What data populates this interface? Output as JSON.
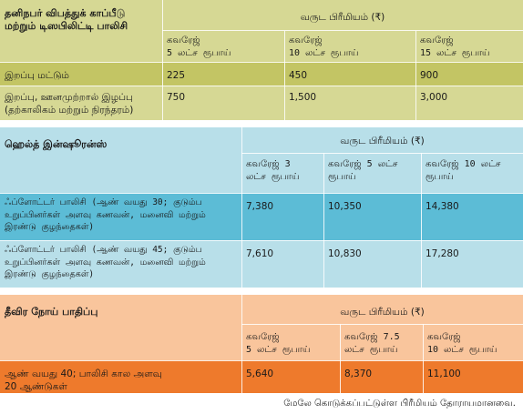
{
  "accident": {
    "title_line1": "தனிநபர் விபத்துக் காப்பீடு",
    "title_line2": "மற்றும் டிஸபிலிட்டி பாலிசி",
    "premium_header": "வருட பிரீமியம் (₹)",
    "coverages": [
      {
        "line1": "கவரேஜ்",
        "line2": "5 லட்ச ரூபாய்"
      },
      {
        "line1": "கவரேஜ்",
        "line2": "10 லட்ச ரூபாய்"
      },
      {
        "line1": "கவரேஜ்",
        "line2": "15 லட்ச ரூபாய்"
      }
    ],
    "rows": [
      {
        "label_line1": "இறப்பு மட்டும்",
        "label_line2": "",
        "values": [
          "225",
          "450",
          "900"
        ]
      },
      {
        "label_line1": "இறப்பு, ஊனமுற்றால் இழப்பு",
        "label_line2": "(தற்காலிகம் மற்றும் நிரந்தரம்)",
        "values": [
          "750",
          "1,500",
          "3,000"
        ]
      }
    ]
  },
  "health": {
    "title": "ஹெல்த் இன்ஷூரன்ஸ்",
    "premium_header": "வருட பிரீமியம் (₹)",
    "coverages": [
      {
        "line1": "கவரேஜ் 3",
        "line2": "லட்ச ரூபாய்"
      },
      {
        "line1": "கவரேஜ் 5 லட்ச",
        "line2": "ரூபாய்"
      },
      {
        "line1": "கவரேஜ் 10 லட்ச",
        "line2": "ரூபாய்"
      }
    ],
    "rows": [
      {
        "lines": [
          "ஃப்ளோட்டர் பாலிசி (ஆண் வயது 30; குடும்ப",
          "உறுப்பினர்கள் அளவு கணவன், மனைவி மற்றும்",
          "இரண்டு குழந்தைகள்)"
        ],
        "values": [
          "7,380",
          "10,350",
          "14,380"
        ]
      },
      {
        "lines": [
          "ஃப்ளோட்டர் பாலிசி (ஆண் வயது 45; குடும்ப",
          "உறுப்பினர்கள் அளவு கணவன், மனைவி மற்றும்",
          "இரண்டு குழந்தைகள்)"
        ],
        "values": [
          "7,610",
          "10,830",
          "17,280"
        ]
      }
    ]
  },
  "critical": {
    "title": "தீவிர நோய் பாதிப்பு",
    "premium_header": "வருட பிரீமியம் (₹)",
    "coverages": [
      {
        "line1": "கவரேஜ்",
        "line2": "5 லட்ச ரூபாய்"
      },
      {
        "line1": "கவரேஜ் 7.5",
        "line2": "லட்ச ரூபாய்"
      },
      {
        "line1": "கவரேஜ்",
        "line2": "10 லட்ச ரூபாய்"
      }
    ],
    "rows": [
      {
        "label_line1": "ஆண் வயது 40; பாலிசி கால அளவு",
        "label_line2": "20 ஆண்டுகள்",
        "values": [
          "5,640",
          "8,370",
          "11,100"
        ]
      }
    ]
  },
  "footnote": "மேலே கொடுக்கப்பட்டுள்ள பிரீமியம் தோராயமானவை.",
  "colors": {
    "accident_head": "#d6d894",
    "accident_row1": "#c3c564",
    "accident_row2": "#d6d894",
    "health_head": "#b8dfe9",
    "health_row1": "#5cbcd6",
    "health_row2": "#b8dfe9",
    "critical_head": "#f9c59c",
    "critical_row": "#ee7a2c"
  }
}
